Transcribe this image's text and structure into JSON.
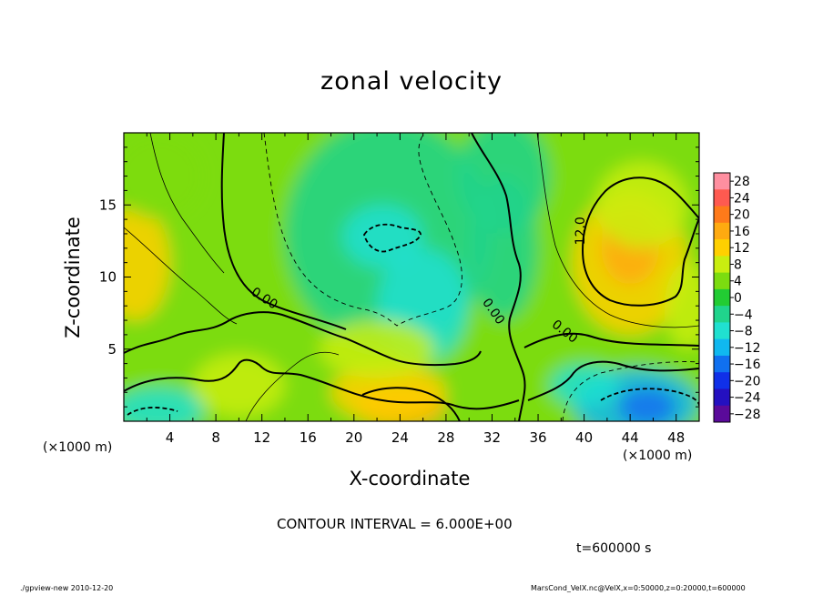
{
  "title": "zonal velocity",
  "x_unit": "(×1000 m)",
  "x_unit_right": "(×1000 m)",
  "contour_interval": "CONTOUR INTERVAL = 6.000E+00",
  "time_label": "t=600000 s",
  "footer_left": "./gpview-new  2010-12-20",
  "footer_right": "MarsCond_VelX.nc@VelX,x=0:50000,z=0:20000,t=600000",
  "chart_data": {
    "type": "heatmap",
    "title": "zonal velocity",
    "xlabel": "X-coordinate",
    "ylabel": "Z-coordinate",
    "xlim": [
      0,
      50
    ],
    "ylim": [
      0,
      20
    ],
    "x_ticks": [
      4,
      8,
      12,
      16,
      20,
      24,
      28,
      32,
      36,
      40,
      44,
      48
    ],
    "y_ticks": [
      5,
      10,
      15
    ],
    "colorbar": {
      "levels": [
        28,
        24,
        20,
        16,
        12,
        8,
        4,
        0,
        -4,
        -8,
        -12,
        -16,
        -20,
        -24,
        -28
      ],
      "colors": [
        "#ff8fa0",
        "#ff5a50",
        "#ff7a1a",
        "#ffaa10",
        "#ffd000",
        "#c9ee10",
        "#7cdc10",
        "#22cc33",
        "#20d48c",
        "#20e0d0",
        "#10b8f0",
        "#1070f0",
        "#1030e8",
        "#2410c0",
        "#5a0a9a"
      ]
    },
    "contour_labels": [
      {
        "text": "0.00",
        "x": 12.2,
        "z": 8.5,
        "angle": 33
      },
      {
        "text": "0.00",
        "x": 32.1,
        "z": 7.6,
        "angle": 55
      },
      {
        "text": "0.00",
        "x": 38.3,
        "z": 6.2,
        "angle": 38
      },
      {
        "text": "12.0",
        "x": 39.7,
        "z": 13.2,
        "angle": -90
      }
    ],
    "blobs": [
      {
        "value": 2,
        "x": 25,
        "z": 10,
        "rx": 60,
        "rz": 24
      },
      {
        "value": -6,
        "x": 23,
        "z": 13,
        "rx": 9,
        "rz": 8
      },
      {
        "value": -9,
        "x": 22.5,
        "z": 12.8,
        "rx": 3.5,
        "rz": 2.2
      },
      {
        "value": -7,
        "x": 26,
        "z": 8,
        "rx": 4,
        "rz": 4
      },
      {
        "value": 13,
        "x": 44,
        "z": 11,
        "rx": 5,
        "rz": 5
      },
      {
        "value": 17,
        "x": 44,
        "z": 12,
        "rx": 2.5,
        "rz": 2.5
      },
      {
        "value": 9,
        "x": 45,
        "z": 15,
        "rx": 4,
        "rz": 3
      },
      {
        "value": -12,
        "x": 44.5,
        "z": 1.2,
        "rx": 5.5,
        "rz": 2.5
      },
      {
        "value": -18,
        "x": 45.5,
        "z": 1.0,
        "rx": 2.5,
        "rz": 1.3
      },
      {
        "value": -7,
        "x": 40,
        "z": 2.5,
        "rx": 3,
        "rz": 1.5
      },
      {
        "value": 17,
        "x": 24,
        "z": 1.0,
        "rx": 4,
        "rz": 1.5
      },
      {
        "value": 10,
        "x": 23,
        "z": 2.0,
        "rx": 5,
        "rz": 2
      },
      {
        "value": -10,
        "x": 3,
        "z": 0.8,
        "rx": 4,
        "rz": 1.6
      },
      {
        "value": 11,
        "x": 1,
        "z": 11,
        "rx": 3,
        "rz": 4
      },
      {
        "value": 9,
        "x": 10,
        "z": 2.5,
        "rx": 4,
        "rz": 2.2
      },
      {
        "value": 9,
        "x": 22,
        "z": 5,
        "rx": 5,
        "rz": 2
      },
      {
        "value": 8,
        "x": 49,
        "z": 8,
        "rx": 2,
        "rz": 3
      },
      {
        "value": -5,
        "x": 33,
        "z": 17,
        "rx": 4,
        "rz": 4
      },
      {
        "value": 5,
        "x": 3,
        "z": 17,
        "rx": 4,
        "rz": 3
      },
      {
        "value": -3,
        "x": 33,
        "z": 12,
        "rx": 3,
        "rz": 5
      }
    ]
  }
}
